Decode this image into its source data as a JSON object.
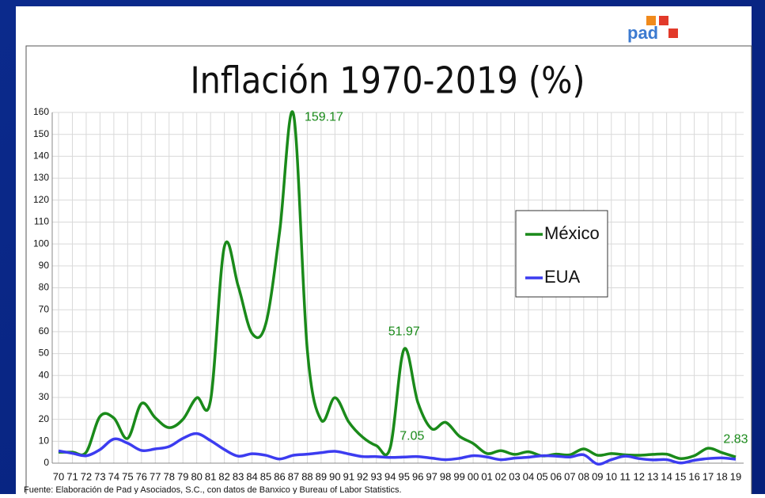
{
  "logo": "pad",
  "chart_data": {
    "type": "line",
    "title": "Inflación 1970-2019 (%)",
    "categories": [
      "70",
      "71",
      "72",
      "73",
      "74",
      "75",
      "76",
      "77",
      "78",
      "79",
      "80",
      "81",
      "82",
      "83",
      "84",
      "85",
      "86",
      "87",
      "88",
      "89",
      "90",
      "91",
      "92",
      "93",
      "94",
      "95",
      "96",
      "97",
      "98",
      "99",
      "00",
      "01",
      "02",
      "03",
      "04",
      "05",
      "06",
      "07",
      "08",
      "09",
      "10",
      "11",
      "12",
      "13",
      "14",
      "15",
      "16",
      "17",
      "18",
      "19"
    ],
    "series": [
      {
        "name": "México",
        "color": "#1a8a1a",
        "values": [
          5.0,
          5.0,
          5.0,
          21.3,
          20.6,
          11.3,
          27.2,
          20.7,
          16.2,
          20.0,
          29.8,
          28.7,
          98.8,
          80.8,
          59.2,
          63.7,
          105.7,
          159.17,
          51.7,
          19.7,
          29.9,
          18.8,
          11.9,
          8.0,
          7.05,
          51.97,
          27.7,
          15.7,
          18.6,
          12.3,
          9.0,
          4.4,
          5.7,
          4.0,
          5.2,
          3.3,
          4.1,
          3.8,
          6.5,
          3.6,
          4.4,
          3.8,
          3.6,
          4.0,
          4.1,
          2.1,
          3.4,
          6.8,
          4.8,
          2.83
        ]
      },
      {
        "name": "EUA",
        "color": "#3c3cf0",
        "values": [
          5.6,
          4.5,
          3.4,
          6.2,
          11.0,
          9.1,
          5.8,
          6.5,
          7.6,
          11.3,
          13.5,
          10.3,
          6.2,
          3.2,
          4.3,
          3.6,
          1.9,
          3.6,
          4.1,
          4.8,
          5.4,
          4.2,
          3.0,
          3.0,
          2.6,
          2.8,
          3.0,
          2.3,
          1.6,
          2.2,
          3.4,
          2.8,
          1.6,
          2.3,
          2.7,
          3.4,
          3.2,
          2.8,
          3.8,
          -0.4,
          1.6,
          3.2,
          2.1,
          1.5,
          1.6,
          0.1,
          1.3,
          2.1,
          2.4,
          1.8
        ]
      }
    ],
    "ylim": [
      0,
      160
    ],
    "yticks": [
      0,
      10,
      20,
      30,
      40,
      50,
      60,
      70,
      80,
      90,
      100,
      110,
      120,
      130,
      140,
      150,
      160
    ],
    "grid": true,
    "note": "Fuente: Elaboración de Pad y Asociados, S.C., con datos de Banxico y Bureau of Labor Statistics."
  }
}
